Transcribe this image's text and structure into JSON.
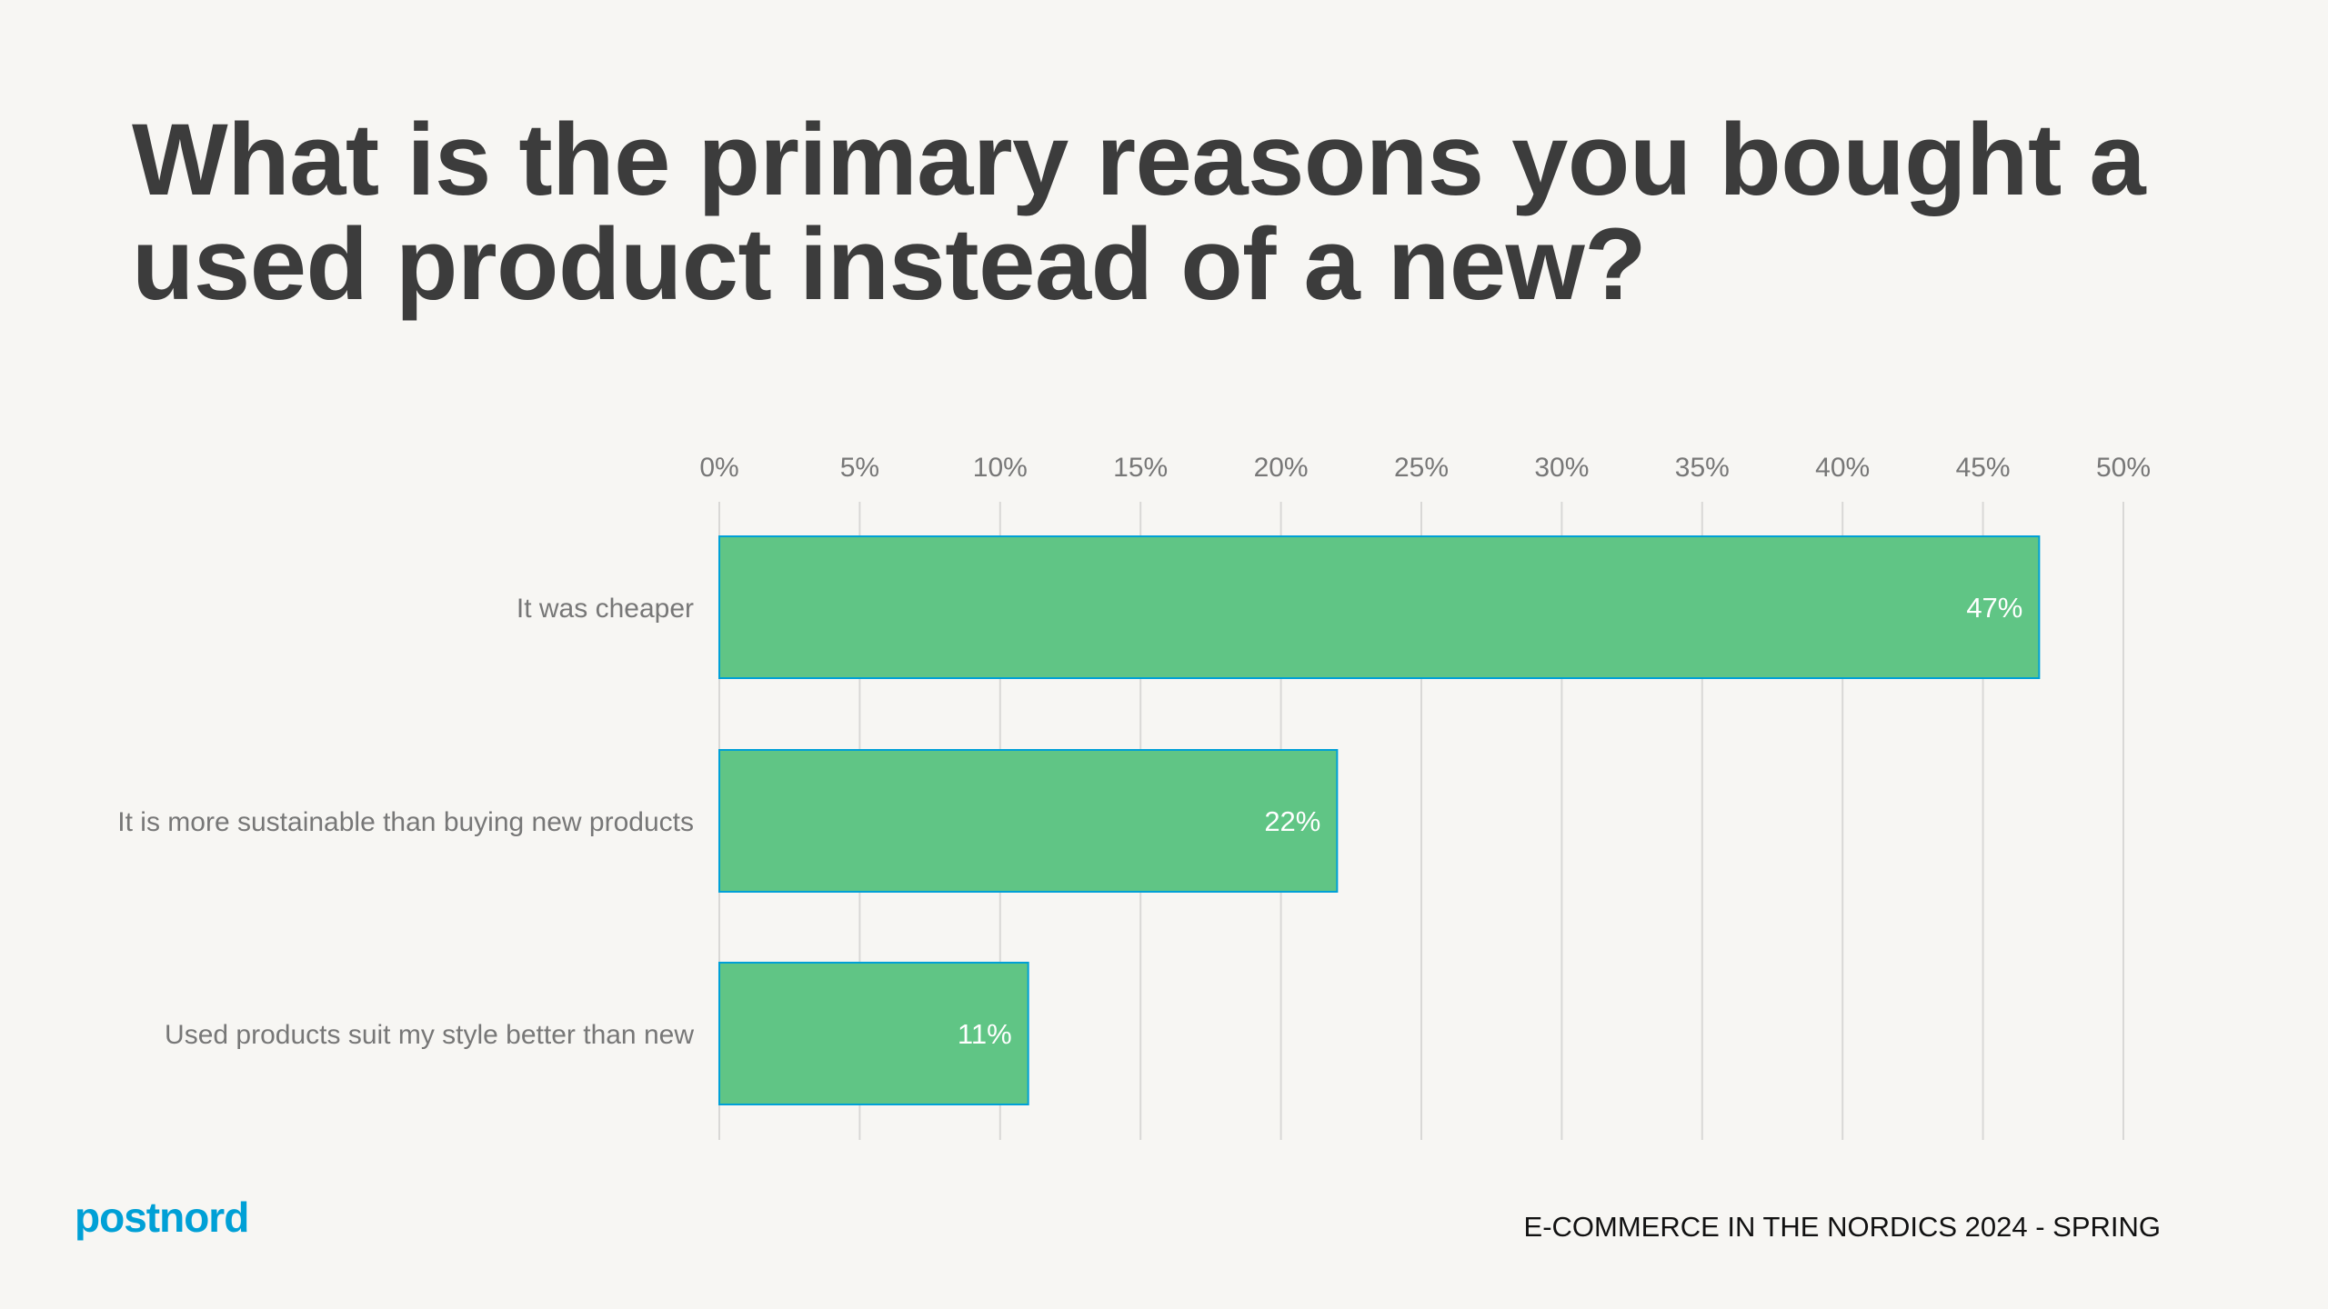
{
  "title": "What is the primary reasons you bought a used product instead of a new?",
  "footer": "E-COMMERCE IN THE NORDICS 2024 - SPRING",
  "logo": "postnord",
  "colors": {
    "bar": "#60C585",
    "bar_border": "#00A0D6",
    "brand": "#00A0D6",
    "background": "#F7F6F3"
  },
  "chart_data": {
    "type": "bar",
    "orientation": "horizontal",
    "categories": [
      "It was cheaper",
      "It is more sustainable than buying new products",
      "Used products suit my style better than new"
    ],
    "values": [
      47,
      22,
      11
    ],
    "data_labels": [
      "47%",
      "22%",
      "11%"
    ],
    "xticks": [
      "0%",
      "5%",
      "10%",
      "15%",
      "20%",
      "25%",
      "30%",
      "35%",
      "40%",
      "45%",
      "50%"
    ],
    "xlim": [
      0,
      50
    ],
    "xaxis_position": "top",
    "grid": true
  }
}
